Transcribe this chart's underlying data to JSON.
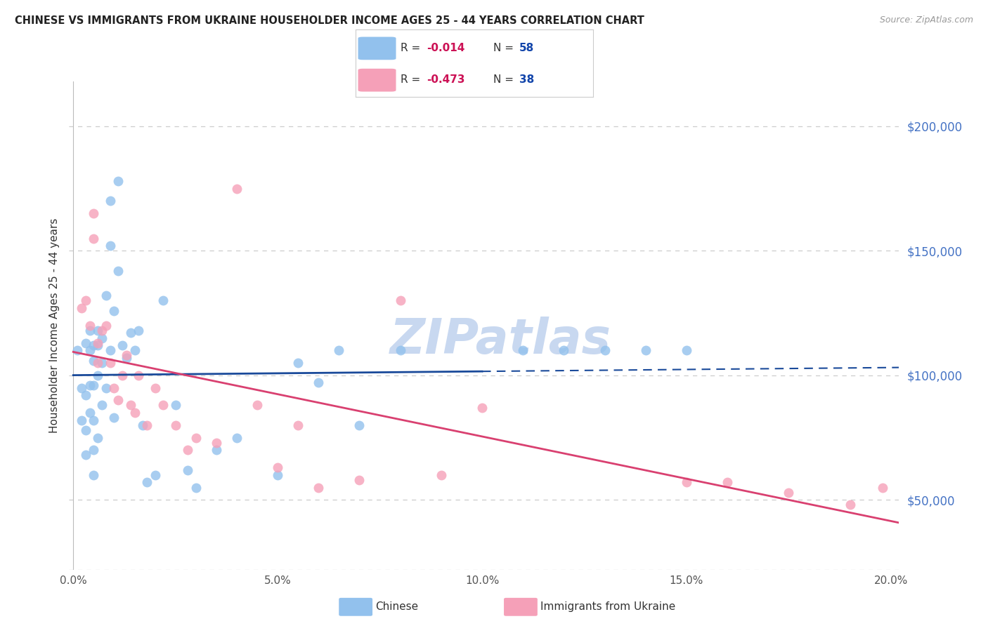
{
  "title": "CHINESE VS IMMIGRANTS FROM UKRAINE HOUSEHOLDER INCOME AGES 25 - 44 YEARS CORRELATION CHART",
  "source": "Source: ZipAtlas.com",
  "ylabel": "Householder Income Ages 25 - 44 years",
  "ytick_values": [
    50000,
    100000,
    150000,
    200000
  ],
  "ytick_labels": [
    "$50,000",
    "$100,000",
    "$150,000",
    "$200,000"
  ],
  "ylim": [
    22000,
    218000
  ],
  "xlim": [
    -0.001,
    0.202
  ],
  "xtick_positions": [
    0.0,
    0.05,
    0.1,
    0.15,
    0.2
  ],
  "xtick_labels": [
    "0.0%",
    "5.0%",
    "10.0%",
    "15.0%",
    "20.0%"
  ],
  "legend_r1": "-0.014",
  "legend_n1": "58",
  "legend_r2": "-0.473",
  "legend_n2": "38",
  "legend_label1": "Chinese",
  "legend_label2": "Immigrants from Ukraine",
  "color_chinese": "#92C1ED",
  "color_ukraine": "#F5A0B8",
  "color_trendline_chinese": "#1A4A9A",
  "color_trendline_ukraine": "#D94070",
  "background_color": "#FFFFFF",
  "watermark_color": "#C8D8F0",
  "right_label_color": "#4472C4",
  "gridline_color": "#CCCCCC",
  "chinese_x": [
    0.001,
    0.002,
    0.002,
    0.003,
    0.003,
    0.003,
    0.003,
    0.004,
    0.004,
    0.004,
    0.004,
    0.005,
    0.005,
    0.005,
    0.005,
    0.005,
    0.005,
    0.006,
    0.006,
    0.006,
    0.006,
    0.007,
    0.007,
    0.007,
    0.008,
    0.008,
    0.009,
    0.009,
    0.009,
    0.01,
    0.01,
    0.011,
    0.011,
    0.012,
    0.013,
    0.014,
    0.015,
    0.016,
    0.017,
    0.018,
    0.02,
    0.022,
    0.025,
    0.028,
    0.03,
    0.035,
    0.04,
    0.05,
    0.055,
    0.06,
    0.065,
    0.07,
    0.08,
    0.11,
    0.12,
    0.13,
    0.14,
    0.15
  ],
  "chinese_y": [
    110000,
    82000,
    95000,
    113000,
    92000,
    78000,
    68000,
    118000,
    110000,
    96000,
    85000,
    112000,
    106000,
    96000,
    82000,
    70000,
    60000,
    118000,
    112000,
    100000,
    75000,
    115000,
    105000,
    88000,
    132000,
    95000,
    170000,
    152000,
    110000,
    126000,
    83000,
    178000,
    142000,
    112000,
    107000,
    117000,
    110000,
    118000,
    80000,
    57000,
    60000,
    130000,
    88000,
    62000,
    55000,
    70000,
    75000,
    60000,
    105000,
    97000,
    110000,
    80000,
    110000,
    110000,
    110000,
    110000,
    110000,
    110000
  ],
  "ukraine_x": [
    0.002,
    0.003,
    0.004,
    0.005,
    0.005,
    0.006,
    0.006,
    0.007,
    0.008,
    0.009,
    0.01,
    0.011,
    0.012,
    0.013,
    0.014,
    0.015,
    0.016,
    0.018,
    0.02,
    0.022,
    0.025,
    0.028,
    0.03,
    0.035,
    0.04,
    0.045,
    0.05,
    0.055,
    0.06,
    0.07,
    0.08,
    0.09,
    0.1,
    0.15,
    0.16,
    0.175,
    0.19,
    0.198
  ],
  "ukraine_y": [
    127000,
    130000,
    120000,
    165000,
    155000,
    113000,
    105000,
    118000,
    120000,
    105000,
    95000,
    90000,
    100000,
    108000,
    88000,
    85000,
    100000,
    80000,
    95000,
    88000,
    80000,
    70000,
    75000,
    73000,
    175000,
    88000,
    63000,
    80000,
    55000,
    58000,
    130000,
    60000,
    87000,
    57000,
    57000,
    53000,
    48000,
    55000
  ]
}
